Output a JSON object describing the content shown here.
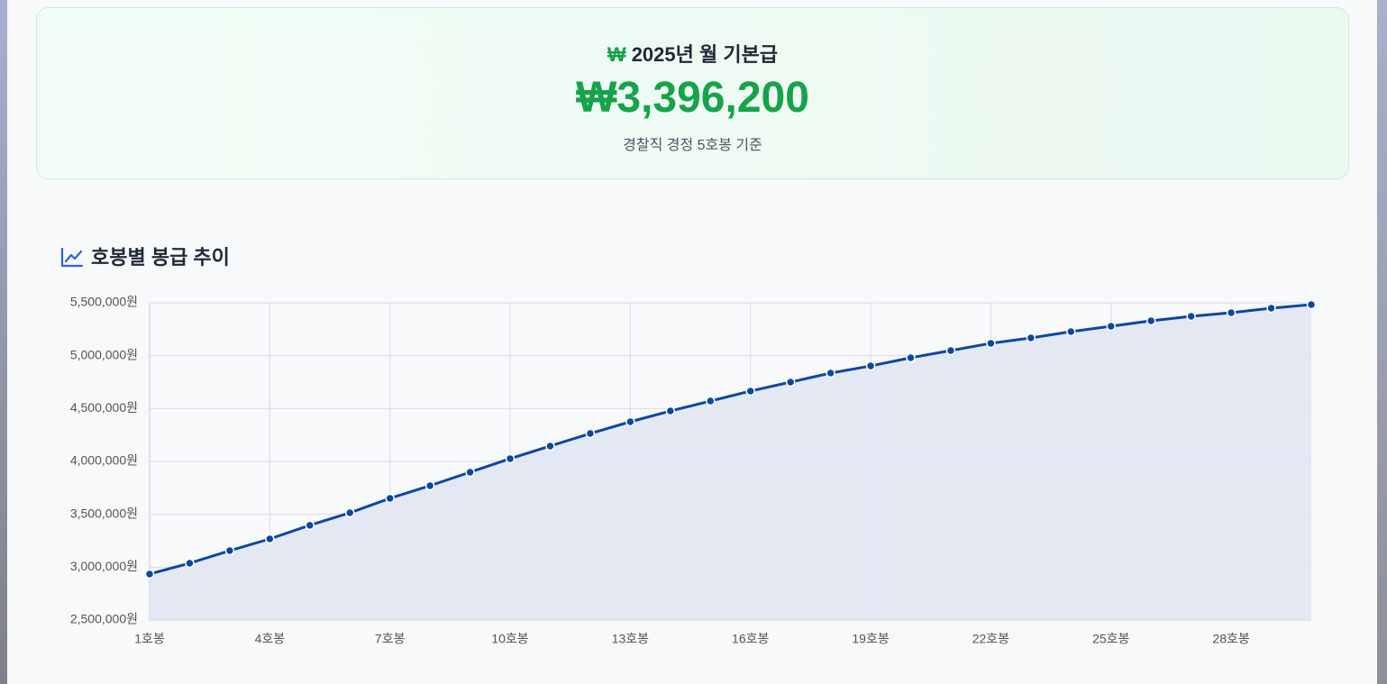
{
  "header": {
    "icon": "₩",
    "title": "2025년 월 기본급",
    "amount": "₩3,396,200",
    "note": "경찰직 경정 5호봉 기준"
  },
  "chart_data": {
    "type": "line",
    "title": "호봉별 봉급 추이",
    "categories": [
      "1호봉",
      null,
      null,
      "4호봉",
      null,
      null,
      "7호봉",
      null,
      null,
      "10호봉",
      null,
      null,
      "13호봉",
      null,
      null,
      "16호봉",
      null,
      null,
      "19호봉",
      null,
      null,
      "22호봉",
      null,
      null,
      "25호봉",
      null,
      null,
      "28호봉",
      null,
      null
    ],
    "values": [
      2935000,
      3037000,
      3156000,
      3267000,
      3396200,
      3514000,
      3651000,
      3770000,
      3898000,
      4026000,
      4145000,
      4264000,
      4375000,
      4477000,
      4571000,
      4665000,
      4750000,
      4835000,
      4903000,
      4980000,
      5048000,
      5117000,
      5168000,
      5227000,
      5278000,
      5330000,
      5372000,
      5406000,
      5449000,
      5483000
    ],
    "color": "#0d47a1",
    "fill": "#e0e6f2",
    "grid": true,
    "ylim": [
      2500000,
      5500000
    ],
    "yticks": [
      {
        "value": 2500000,
        "label": "2,500,000원"
      },
      {
        "value": 3000000,
        "label": "3,000,000원"
      },
      {
        "value": 3500000,
        "label": "3,500,000원"
      },
      {
        "value": 4000000,
        "label": "4,000,000원"
      },
      {
        "value": 4500000,
        "label": "4,500,000원"
      },
      {
        "value": 5000000,
        "label": "5,000,000원"
      },
      {
        "value": 5500000,
        "label": "5,500,000원"
      }
    ]
  }
}
